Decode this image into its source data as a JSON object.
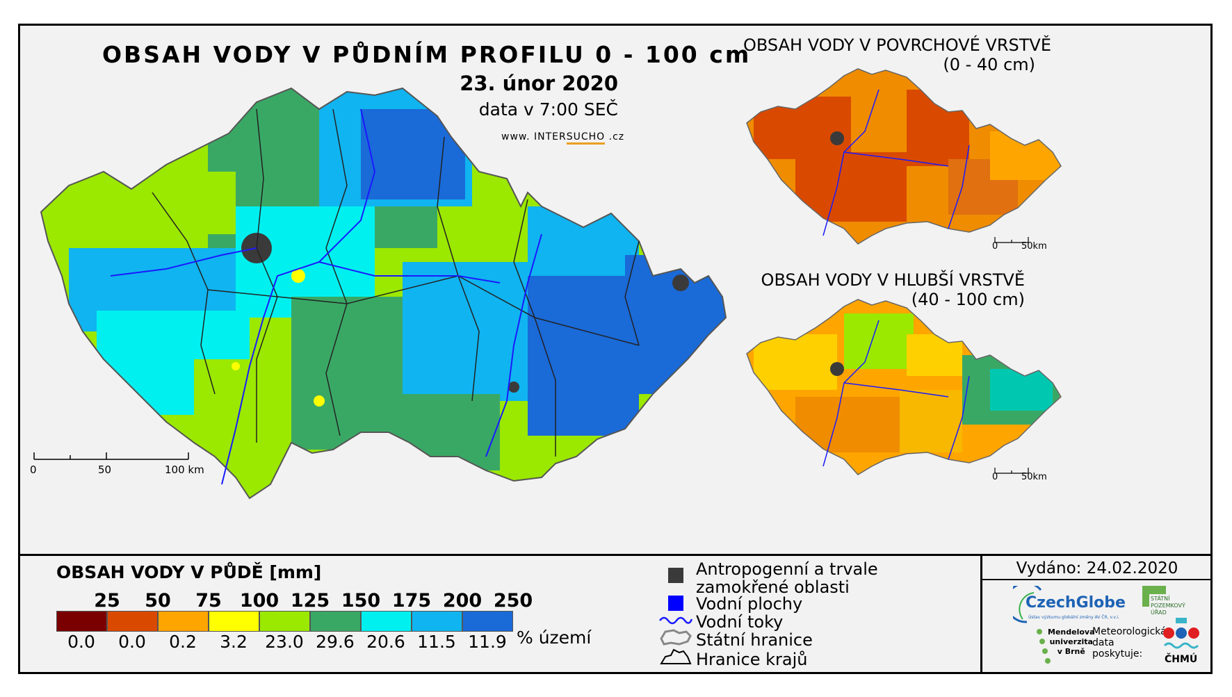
{
  "header": {
    "main_title": "OBSAH VODY V PŮDNÍM PROFILU 0 - 100 cm",
    "date": "23. únor 2020",
    "time": "data v 7:00 SEČ",
    "website_prefix": "www. INTER",
    "website_highlight": "SUCHO",
    "website_suffix": " .cz"
  },
  "main_map": {
    "scale_labels": [
      "0",
      "50",
      "100 km"
    ]
  },
  "inset_top": {
    "title_line1": "OBSAH VODY V POVRCHOVÉ VRSTVĚ",
    "title_line2": "(0 - 40 cm)",
    "scale_labels": [
      "0",
      "50km"
    ]
  },
  "inset_bottom": {
    "title_line1": "OBSAH VODY V HLUBŠÍ VRSTVĚ",
    "title_line2": "(40 - 100 cm)",
    "scale_labels": [
      "0",
      "50km"
    ]
  },
  "legend": {
    "title": "OBSAH VODY V PŮDĚ [mm]",
    "thresholds": [
      "25",
      "50",
      "75",
      "100",
      "125",
      "150",
      "175",
      "200",
      "250"
    ],
    "classes": [
      {
        "color": "#7a0000",
        "percent": "0.0"
      },
      {
        "color": "#d94a00",
        "percent": "0.0"
      },
      {
        "color": "#ffa500",
        "percent": "0.2"
      },
      {
        "color": "#ffff00",
        "percent": "3.2"
      },
      {
        "color": "#9be800",
        "percent": "23.0"
      },
      {
        "color": "#3aa865",
        "percent": "29.6"
      },
      {
        "color": "#00f0f0",
        "percent": "20.6"
      },
      {
        "color": "#10b4f0",
        "percent": "11.5"
      },
      {
        "color": "#1a6ad8",
        "percent": "11.9"
      }
    ],
    "unit": "% území"
  },
  "symbols": {
    "anthropogenic_line1": "Antropogenní a trvale",
    "anthropogenic_line2": "zamokřené oblasti",
    "water_bodies": "Vodní plochy",
    "rivers": "Vodní toky",
    "state_border": "Státní hranice",
    "region_border": "Hranice krajů",
    "anthropogenic_color": "#3a3a3a",
    "water_color": "#0000ff",
    "river_color": "#1a1aff"
  },
  "issued": {
    "text": "Vydáno: 24.02.2020"
  },
  "logos": {
    "czechglobe": "CzechGlobe",
    "czechglobe_sub": "Ústav výzkumu globální změny AV ČR, v.v.i.",
    "spu_line1": "STÁTNÍ",
    "spu_line2": "POZEMKOVÝ",
    "spu_line3": "ÚŘAD",
    "mendel_line1": "Mendelova",
    "mendel_line2": "univerzita",
    "mendel_line3": "v Brně",
    "met_line1": "Meteorologická",
    "met_line2": "data",
    "met_line3": "poskytuje:",
    "chmu": "ČHMÚ"
  }
}
